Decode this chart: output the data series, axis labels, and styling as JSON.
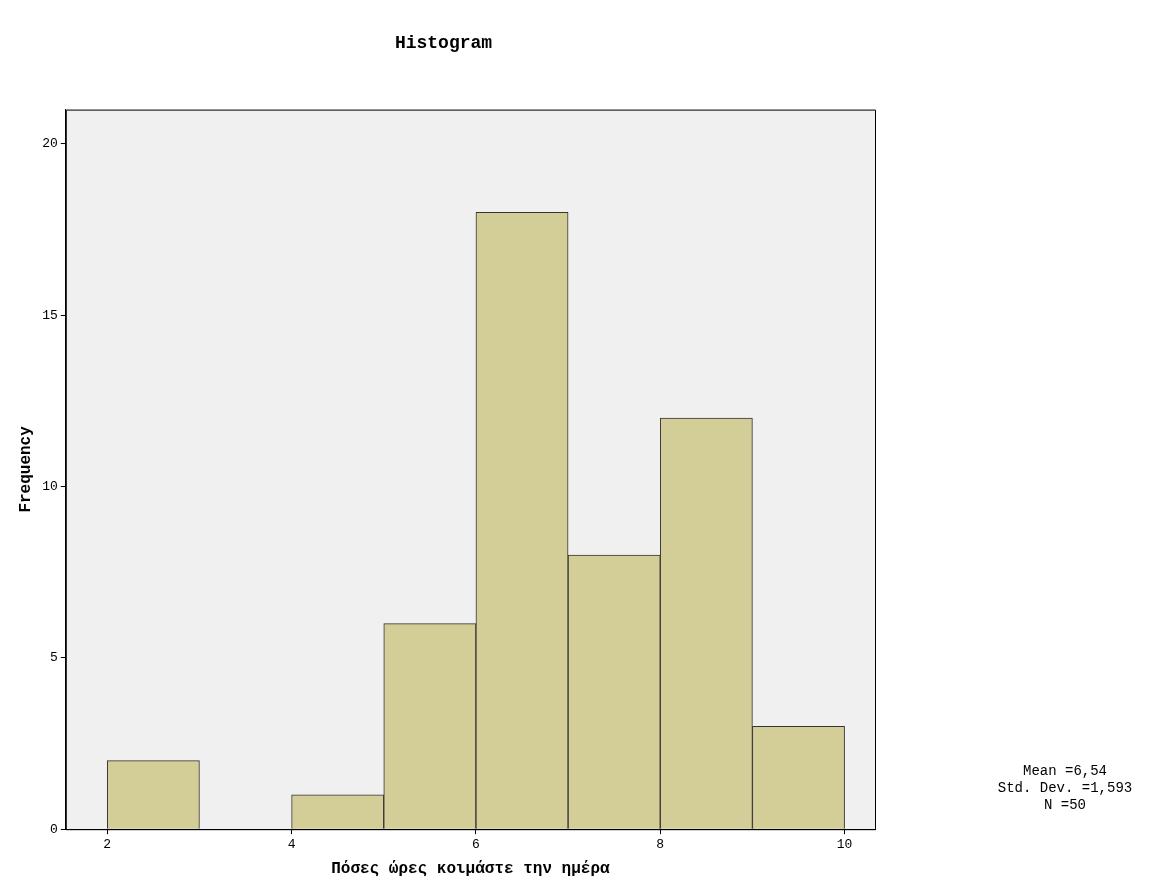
{
  "chart_data": {
    "type": "histogram",
    "title": "Histogram",
    "xlabel": "Πόσες ώρες κοιμάστε την ημέρα",
    "ylabel": "Frequency",
    "bins": [
      2,
      3,
      4,
      5,
      6,
      7,
      8,
      9,
      10
    ],
    "values": [
      2,
      0,
      1,
      6,
      18,
      8,
      12,
      3
    ],
    "color": "#d3ce97",
    "xlim": [
      1.55,
      10.33
    ],
    "xticks": [
      2,
      4,
      6,
      8,
      10
    ],
    "ylim": [
      0,
      21
    ],
    "yticks": [
      0,
      5,
      10,
      15,
      20
    ],
    "grid": false,
    "legend": false,
    "annotations": [
      "Mean =6,54",
      "Std. Dev. =1,593",
      "N =50"
    ]
  }
}
